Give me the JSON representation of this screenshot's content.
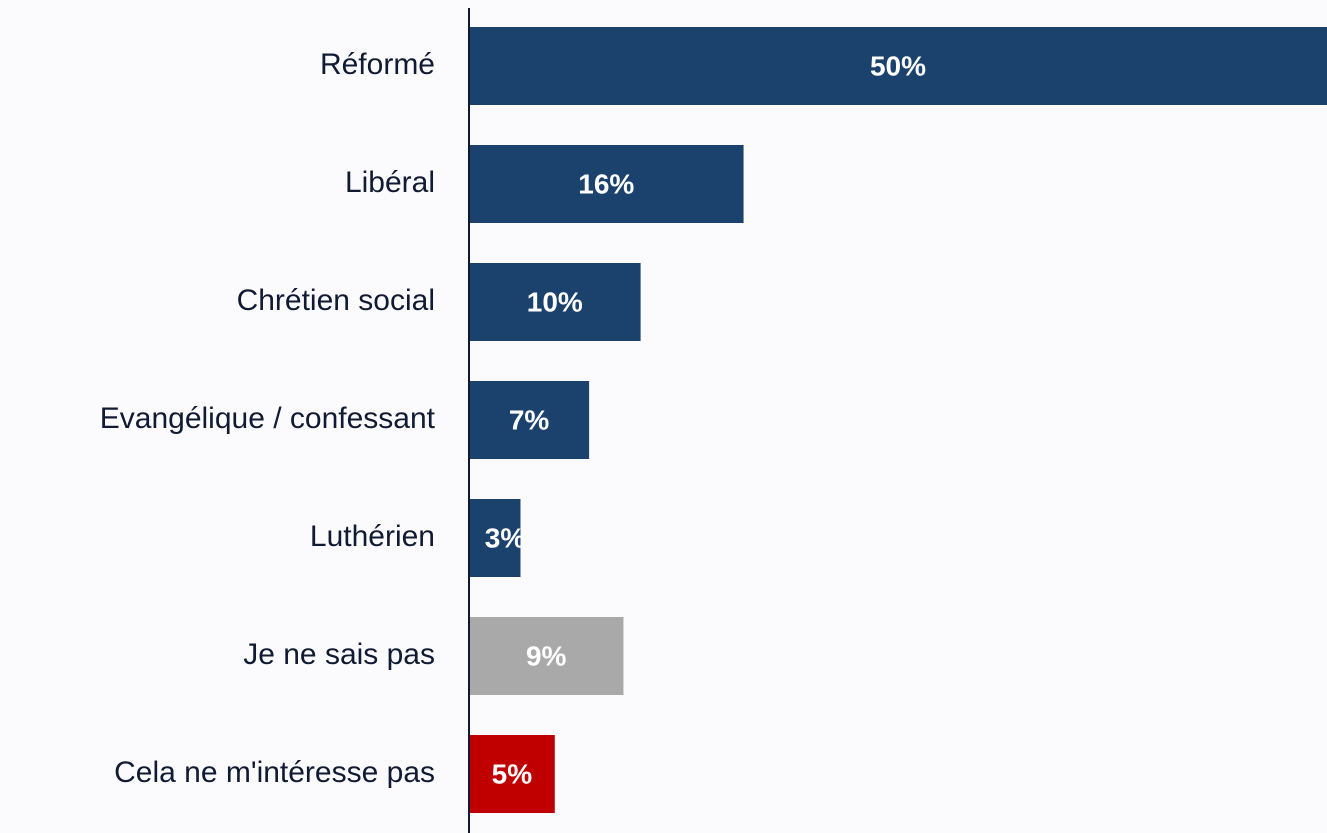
{
  "chart_data": {
    "type": "hbar",
    "categories": [
      "Réformé",
      "Libéral",
      "Chrétien social",
      "Evangélique / confessant",
      "Luthérien",
      "Je ne sais pas",
      "Cela ne m'intéresse pas"
    ],
    "values": [
      50,
      16,
      10,
      7,
      3,
      9,
      5
    ],
    "value_labels": [
      "50%",
      "16%",
      "10%",
      "7%",
      "3%",
      "9%",
      "5%"
    ],
    "colors": [
      "#1b416d",
      "#1b416d",
      "#1b416d",
      "#1b416d",
      "#1b416d",
      "#a9a9a9",
      "#c00000"
    ],
    "xlim": [
      0,
      50
    ]
  }
}
